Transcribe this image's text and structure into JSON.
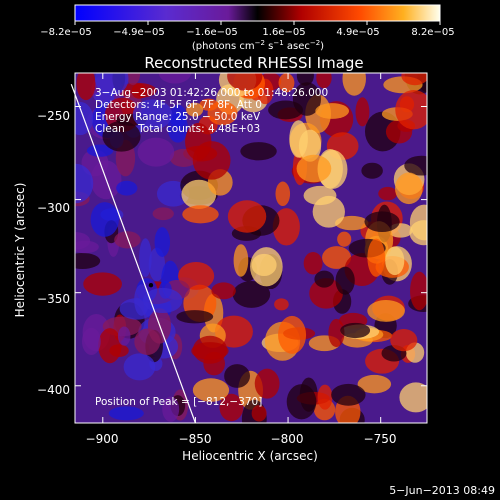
{
  "chart_data": {
    "type": "heatmap",
    "title": "Reconstructed RHESSI Image",
    "xlabel": "Heliocentric X (arcsec)",
    "ylabel": "Heliocentric Y (arcsec)",
    "xlim": [
      -915,
      -725
    ],
    "ylim": [
      -420,
      -232
    ],
    "xticks": [
      -900,
      -850,
      -800,
      -750
    ],
    "xtick_labels": [
      "−900",
      "−850",
      "−800",
      "−750"
    ],
    "yticks": [
      -250,
      -300,
      -350,
      -400
    ],
    "ytick_labels": [
      "−250",
      "−300",
      "−350",
      "−400"
    ],
    "colorbar": {
      "min": -8.2e-05,
      "max": 8.2e-05,
      "tick_labels": [
        "−8.2e−05",
        "−4.9e−05",
        "−1.6e−05",
        "1.6e−05",
        "4.9e−05",
        "8.2e−05"
      ],
      "units_prefix": "(photons cm",
      "units_exp1": "−2",
      "units_mid": " s",
      "units_exp2": "−1",
      "units_mid2": " asec",
      "units_exp3": "−2",
      "units_suffix": ")"
    },
    "annotations": {
      "time_range": "3−Aug−2003 01:42:26.000 to 01:48:26.000",
      "detectors": "Detectors: 4F 5F 6F 7F 8F, Att 0",
      "energy": "Energy Range: 25.0 − 50.0 keV",
      "clean": "Clean    Total counts: 4.48E+03",
      "peak": "Position of Peak = [−812,−370]"
    },
    "peak_position": [
      -812,
      -370
    ],
    "limb_line": [
      [
        -917,
        -238
      ],
      [
        -850,
        -420
      ]
    ],
    "marker": [
      -874,
      -346
    ]
  },
  "footer": {
    "date": "5−Jun−2013 08:49"
  },
  "colors": {
    "bg": "#000000",
    "text": "#ffffff"
  }
}
